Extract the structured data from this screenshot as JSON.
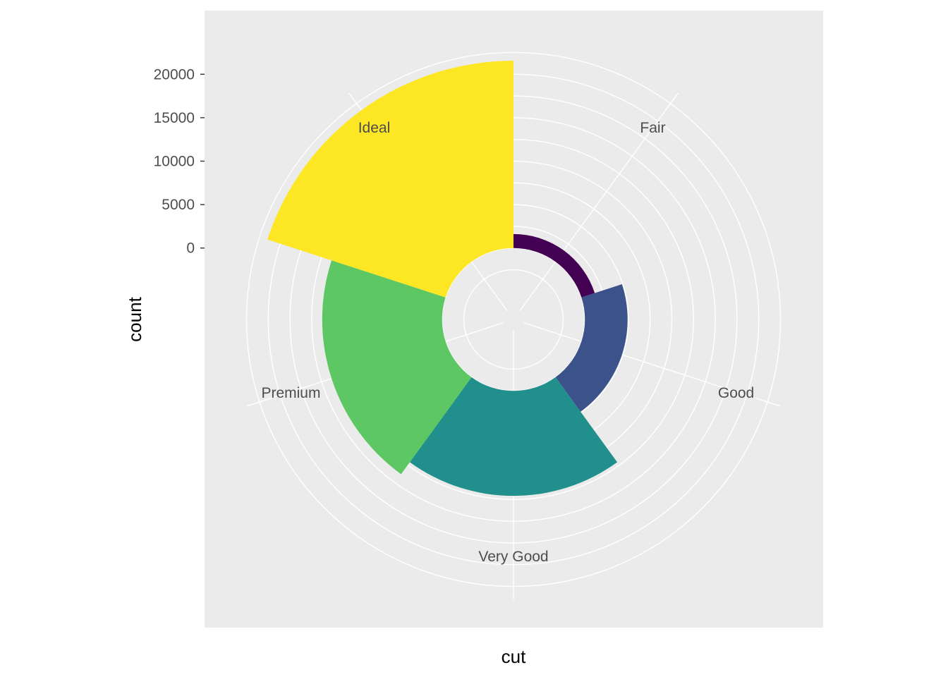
{
  "chart_data": {
    "type": "bar",
    "coord": "polar",
    "categories": [
      "Fair",
      "Good",
      "Very Good",
      "Premium",
      "Ideal"
    ],
    "values": [
      1610,
      4906,
      12082,
      13791,
      21551
    ],
    "colors": [
      "#440154",
      "#3B528B",
      "#21908C",
      "#5DC863",
      "#FDE725"
    ],
    "xlabel": "cut",
    "ylabel": "count",
    "y_ticks": [
      0,
      5000,
      10000,
      15000,
      20000
    ],
    "y_tick_labels": [
      "0",
      "5000",
      "10000",
      "15000",
      "20000"
    ],
    "y_domain": [
      -7000,
      24000
    ],
    "legend": "none",
    "grid": true,
    "panel_background": "#EBEBEB"
  }
}
